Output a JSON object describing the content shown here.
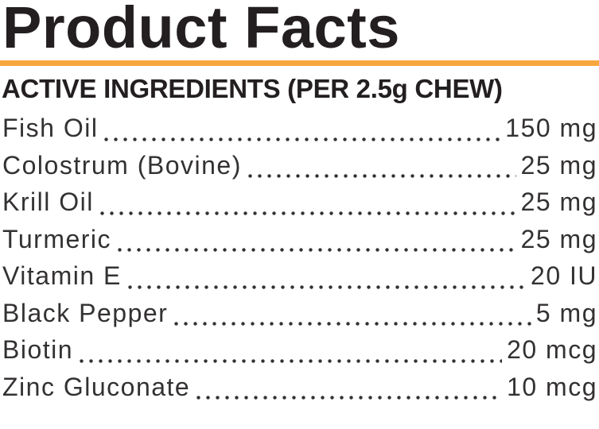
{
  "panel": {
    "title": "Product Facts",
    "section_header": "ACTIVE INGREDIENTS (PER 2.5g CHEW)",
    "accent_color": "#F8A83E",
    "ink_color": "#231f20"
  },
  "ingredients": [
    {
      "name": "Fish Oil",
      "amount": "150 mg"
    },
    {
      "name": "Colostrum (Bovine)",
      "amount": "25 mg"
    },
    {
      "name": "Krill Oil",
      "amount": "25 mg"
    },
    {
      "name": "Turmeric",
      "amount": "25 mg"
    },
    {
      "name": "Vitamin E",
      "amount": "20 IU"
    },
    {
      "name": "Black Pepper",
      "amount": "5 mg"
    },
    {
      "name": "Biotin",
      "amount": "20 mcg"
    },
    {
      "name": "Zinc Gluconate",
      "amount": "10 mcg"
    }
  ]
}
